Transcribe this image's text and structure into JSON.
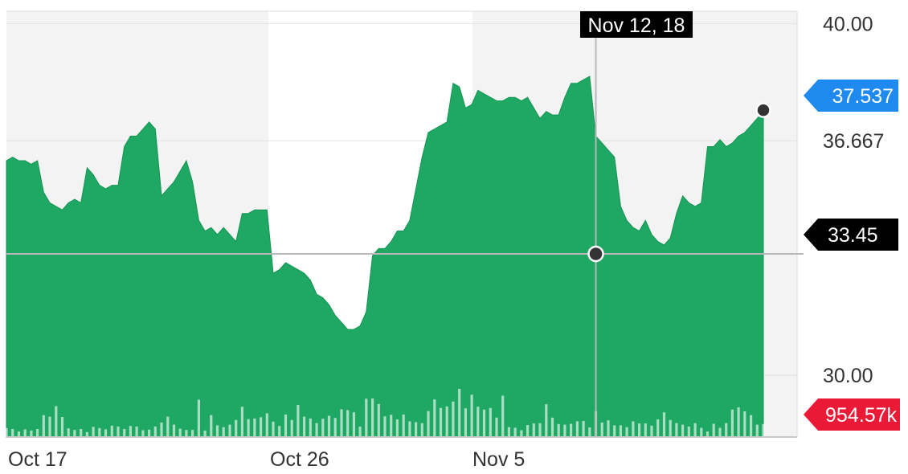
{
  "chart_data": {
    "type": "area",
    "x_tick_labels": [
      "Oct 17",
      "Oct 26",
      "Nov 5"
    ],
    "y_tick_labels": [
      "40.00",
      "36.667",
      "30.00"
    ],
    "y_ticks": [
      40.0,
      36.667,
      30.0
    ],
    "ylim": [
      28.24,
      40.35
    ],
    "grid": true,
    "price": [
      36.1,
      36.2,
      36.1,
      36.1,
      36.0,
      36.1,
      35.2,
      34.9,
      34.8,
      34.7,
      34.9,
      35.0,
      34.9,
      35.9,
      35.7,
      35.4,
      35.3,
      35.4,
      35.4,
      36.5,
      36.8,
      36.8,
      37.0,
      37.2,
      37.0,
      35.1,
      35.3,
      35.5,
      35.8,
      36.1,
      35.5,
      34.4,
      34.1,
      34.2,
      34.0,
      34.2,
      34.0,
      33.8,
      34.6,
      34.6,
      34.7,
      34.7,
      34.7,
      32.9,
      33.0,
      33.2,
      33.1,
      33.0,
      32.9,
      32.7,
      32.3,
      32.2,
      32.0,
      31.7,
      31.5,
      31.3,
      31.3,
      31.4,
      31.8,
      33.4,
      33.6,
      33.6,
      33.8,
      34.1,
      34.1,
      34.4,
      35.3,
      36.2,
      36.9,
      37.0,
      37.1,
      37.2,
      38.3,
      38.2,
      37.6,
      37.7,
      38.1,
      38.0,
      37.9,
      37.8,
      37.8,
      37.9,
      37.9,
      37.8,
      37.9,
      37.6,
      37.3,
      37.5,
      37.4,
      37.4,
      37.9,
      38.3,
      38.3,
      38.4,
      38.5,
      36.8,
      36.6,
      36.4,
      36.2,
      34.8,
      34.4,
      34.2,
      34.1,
      34.4,
      34.0,
      33.8,
      33.7,
      33.9,
      34.6,
      35.1,
      34.9,
      34.8,
      34.9,
      36.5,
      36.5,
      36.7,
      36.5,
      36.6,
      36.8,
      36.9,
      37.1,
      37.3,
      37.5
    ],
    "volume": [
      0.29,
      0.26,
      0.18,
      0.25,
      0.21,
      0.26,
      0.71,
      0.66,
      1.0,
      0.65,
      0.28,
      0.23,
      0.26,
      0.16,
      0.33,
      0.29,
      0.25,
      0.37,
      0.34,
      0.26,
      0.36,
      0.34,
      0.22,
      0.24,
      0.34,
      0.47,
      0.66,
      0.4,
      0.27,
      0.23,
      0.23,
      1.21,
      0.21,
      0.71,
      0.38,
      0.32,
      0.4,
      0.55,
      0.98,
      0.58,
      0.6,
      0.64,
      0.77,
      0.5,
      0.36,
      0.73,
      0.55,
      1.04,
      0.66,
      0.6,
      0.45,
      0.59,
      0.69,
      0.62,
      0.9,
      0.87,
      0.8,
      0.34,
      1.24,
      1.25,
      1.07,
      0.67,
      0.72,
      0.57,
      0.73,
      0.51,
      0.48,
      0.45,
      0.84,
      1.22,
      0.94,
      0.99,
      1.15,
      1.56,
      0.93,
      1.37,
      0.98,
      0.89,
      0.94,
      0.63,
      1.34,
      0.32,
      0.3,
      0.22,
      0.39,
      0.44,
      0.45,
      1.06,
      0.63,
      0.42,
      0.4,
      0.43,
      0.51,
      0.52,
      0.31,
      0.84,
      0.47,
      0.54,
      0.38,
      0.38,
      0.32,
      0.51,
      0.44,
      0.44,
      0.37,
      0.57,
      0.8,
      0.55,
      0.45,
      0.4,
      0.34,
      0.45,
      0.3,
      0.18,
      0.43,
      0.3,
      0.45,
      0.89,
      0.96,
      0.83,
      0.71,
      0.4,
      0.42
    ],
    "crosshair": {
      "date": "Nov 12, 18",
      "value": "33.45"
    },
    "last_price": "37.537",
    "volume_label": "954.57k",
    "colors": {
      "area": "#1fa863",
      "area_line": "#139451",
      "crosshair_tag": "#000000",
      "last_price_tag": "#1e8af0",
      "volume_tag": "#ea1a37"
    }
  }
}
